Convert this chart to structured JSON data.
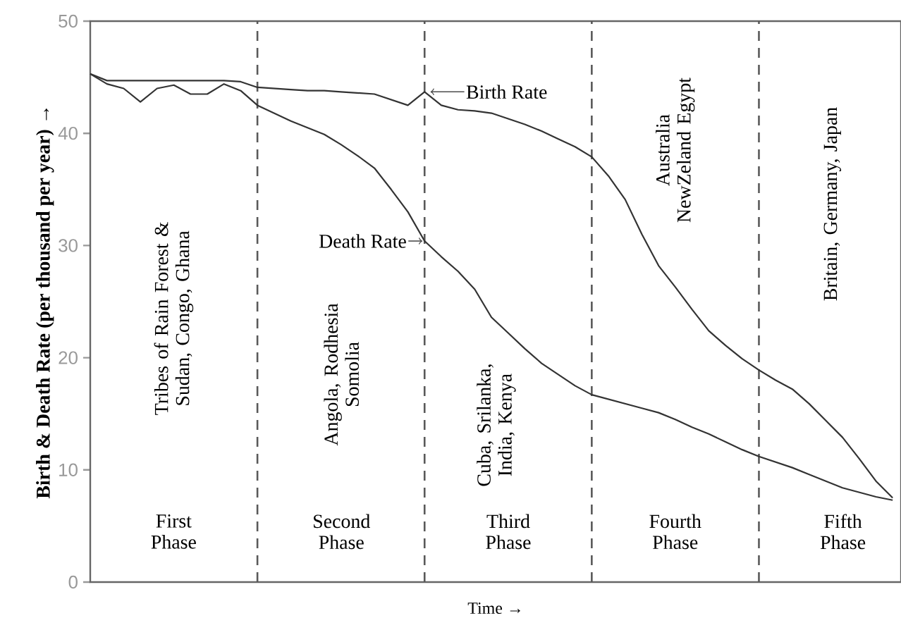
{
  "chart_data": {
    "type": "line",
    "xlabel": "Time →",
    "ylabel": "Birth & Death Rate (per thousand per year) →",
    "categories": [
      null,
      null,
      null,
      null,
      null,
      null,
      null,
      null,
      null,
      null,
      null,
      null,
      null,
      null,
      null,
      null,
      null,
      null,
      null,
      null,
      null,
      null,
      null,
      null,
      null,
      null,
      null,
      null,
      null,
      null,
      null,
      null,
      null,
      null,
      null,
      null,
      null,
      null,
      null,
      null,
      null,
      null,
      null,
      null,
      null,
      null,
      null,
      null,
      null
    ],
    "ylim": [
      0,
      50
    ],
    "yticks": [
      0,
      10,
      20,
      30,
      40,
      50
    ],
    "grid": "x",
    "series": [
      {
        "color": "#333333",
        "values": [
          45.3,
          44.7,
          44.7,
          44.7,
          44.7,
          44.7,
          44.7,
          44.7,
          44.7,
          44.6,
          44.1,
          44.0,
          43.9,
          43.8,
          43.8,
          43.7,
          43.6,
          43.5,
          43.0,
          42.5,
          43.7,
          42.5,
          42.1,
          42.0,
          41.8,
          41.3,
          40.8,
          40.2,
          39.5,
          38.8,
          37.9,
          36.2,
          34.1,
          31.0,
          28.2,
          26.3,
          24.3,
          22.4,
          21.1,
          19.9,
          18.9,
          18.0,
          17.2,
          15.9,
          14.4,
          12.9,
          11.0,
          9.0,
          7.5
        ]
      },
      {
        "color": "#333333",
        "values": [
          45.3,
          44.4,
          44.0,
          42.8,
          44.0,
          44.3,
          43.5,
          43.5,
          44.4,
          43.8,
          42.5,
          41.8,
          41.1,
          40.5,
          39.9,
          39.0,
          38.0,
          36.9,
          35.0,
          33.0,
          30.4,
          29.0,
          27.7,
          26.1,
          23.6,
          22.2,
          20.8,
          19.5,
          18.5,
          17.5,
          16.7,
          16.3,
          15.9,
          15.5,
          15.1,
          14.5,
          13.8,
          13.2,
          12.5,
          11.8,
          11.2,
          10.7,
          10.2,
          9.6,
          9.0,
          8.4,
          8.0,
          7.6,
          7.3
        ]
      }
    ],
    "annotations": [
      "Birth Rate",
      "Death Rate",
      "First Phase",
      "Second Phase",
      "Third Phase",
      "Fourth Phase",
      "Fifth Phase",
      "Tribes of Rain Forest & Sudan, Congo, Ghana",
      "Angola, Rodhesia Somolia",
      "Cuba, Srilanka, India, Kenya",
      "Australia NewZeland Egypt",
      "Britain, Germany, Japan"
    ]
  }
}
